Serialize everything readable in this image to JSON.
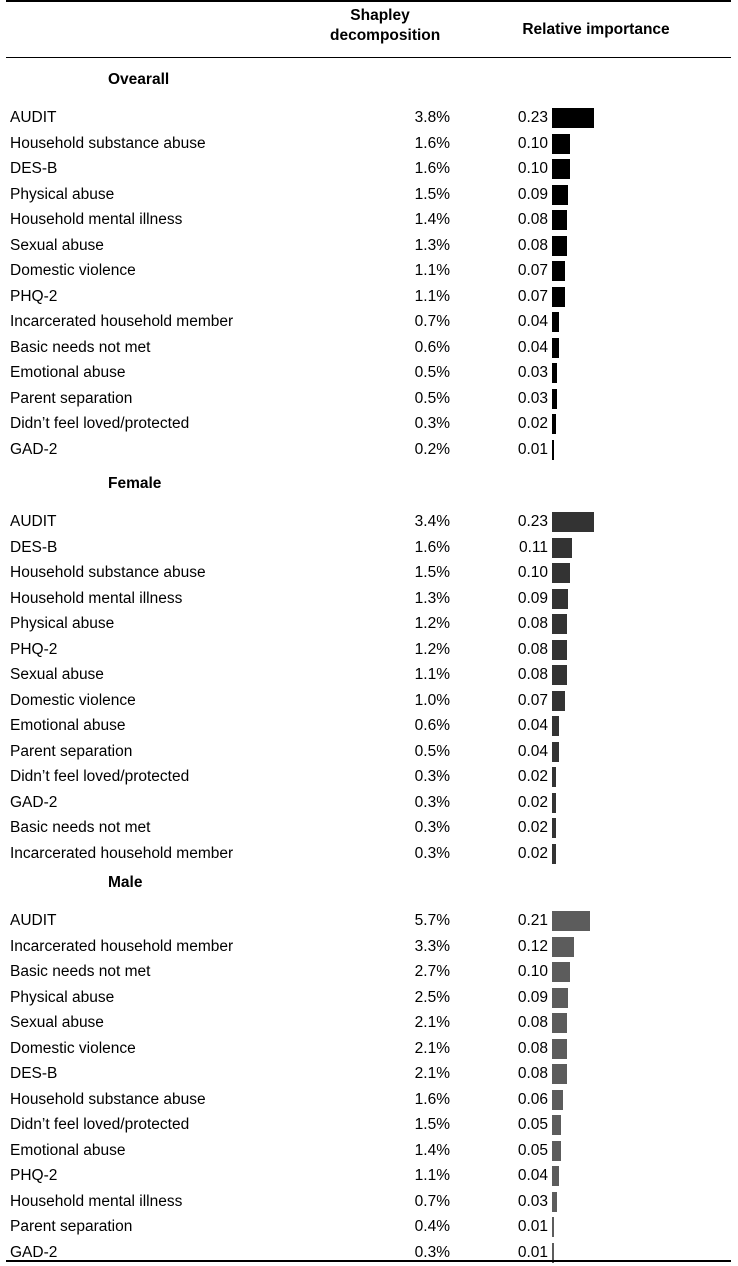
{
  "header": {
    "shapley_label": "Shapley decomposition",
    "relative_label": "Relative importance"
  },
  "colors": {
    "Overall": "#000000",
    "Female": "#333333",
    "Male": "#5c5c5c"
  },
  "chart_data": {
    "type": "bar",
    "orientation": "horizontal",
    "xlim": [
      0,
      0.23
    ],
    "groups": [
      {
        "name": "Ovearall",
        "rows": [
          {
            "label": "AUDIT",
            "shapley": "3.8%",
            "relative": "0.23",
            "value": 0.23
          },
          {
            "label": "Household substance abuse",
            "shapley": "1.6%",
            "relative": "0.10",
            "value": 0.1
          },
          {
            "label": "DES-B",
            "shapley": "1.6%",
            "relative": "0.10",
            "value": 0.1
          },
          {
            "label": "Physical abuse",
            "shapley": "1.5%",
            "relative": "0.09",
            "value": 0.09
          },
          {
            "label": "Household mental illness",
            "shapley": "1.4%",
            "relative": "0.08",
            "value": 0.08
          },
          {
            "label": "Sexual abuse",
            "shapley": "1.3%",
            "relative": "0.08",
            "value": 0.08
          },
          {
            "label": "Domestic violence",
            "shapley": "1.1%",
            "relative": "0.07",
            "value": 0.07
          },
          {
            "label": "PHQ-2",
            "shapley": "1.1%",
            "relative": "0.07",
            "value": 0.07
          },
          {
            "label": "Incarcerated household member",
            "shapley": "0.7%",
            "relative": "0.04",
            "value": 0.04
          },
          {
            "label": "Basic needs not met",
            "shapley": "0.6%",
            "relative": "0.04",
            "value": 0.04
          },
          {
            "label": "Emotional abuse",
            "shapley": "0.5%",
            "relative": "0.03",
            "value": 0.03
          },
          {
            "label": "Parent separation",
            "shapley": "0.5%",
            "relative": "0.03",
            "value": 0.03
          },
          {
            "label": "Didn’t feel loved/protected",
            "shapley": "0.3%",
            "relative": "0.02",
            "value": 0.02
          },
          {
            "label": "GAD-2",
            "shapley": "0.2%",
            "relative": "0.01",
            "value": 0.01
          }
        ]
      },
      {
        "name": "Female",
        "rows": [
          {
            "label": "AUDIT",
            "shapley": "3.4%",
            "relative": "0.23",
            "value": 0.23
          },
          {
            "label": "DES-B",
            "shapley": "1.6%",
            "relative": "0.11",
            "value": 0.11
          },
          {
            "label": "Household substance abuse",
            "shapley": "1.5%",
            "relative": "0.10",
            "value": 0.1
          },
          {
            "label": "Household mental illness",
            "shapley": "1.3%",
            "relative": "0.09",
            "value": 0.09
          },
          {
            "label": "Physical abuse",
            "shapley": "1.2%",
            "relative": "0.08",
            "value": 0.08
          },
          {
            "label": "PHQ-2",
            "shapley": "1.2%",
            "relative": "0.08",
            "value": 0.08
          },
          {
            "label": "Sexual abuse",
            "shapley": "1.1%",
            "relative": "0.08",
            "value": 0.08
          },
          {
            "label": "Domestic violence",
            "shapley": "1.0%",
            "relative": "0.07",
            "value": 0.07
          },
          {
            "label": "Emotional abuse",
            "shapley": "0.6%",
            "relative": "0.04",
            "value": 0.04
          },
          {
            "label": "Parent separation",
            "shapley": "0.5%",
            "relative": "0.04",
            "value": 0.04
          },
          {
            "label": "Didn’t feel loved/protected",
            "shapley": "0.3%",
            "relative": "0.02",
            "value": 0.02
          },
          {
            "label": "GAD-2",
            "shapley": "0.3%",
            "relative": "0.02",
            "value": 0.02
          },
          {
            "label": "Basic needs not met",
            "shapley": "0.3%",
            "relative": "0.02",
            "value": 0.02
          },
          {
            "label": "Incarcerated household member",
            "shapley": "0.3%",
            "relative": "0.02",
            "value": 0.02
          }
        ]
      },
      {
        "name": "Male",
        "rows": [
          {
            "label": "AUDIT",
            "shapley": "5.7%",
            "relative": "0.21",
            "value": 0.21
          },
          {
            "label": "Incarcerated household member",
            "shapley": "3.3%",
            "relative": "0.12",
            "value": 0.12
          },
          {
            "label": "Basic needs not met",
            "shapley": "2.7%",
            "relative": "0.10",
            "value": 0.1
          },
          {
            "label": "Physical abuse",
            "shapley": "2.5%",
            "relative": "0.09",
            "value": 0.09
          },
          {
            "label": "Sexual abuse",
            "shapley": "2.1%",
            "relative": "0.08",
            "value": 0.08
          },
          {
            "label": "Domestic violence",
            "shapley": "2.1%",
            "relative": "0.08",
            "value": 0.08
          },
          {
            "label": "DES-B",
            "shapley": "2.1%",
            "relative": "0.08",
            "value": 0.08
          },
          {
            "label": "Household substance abuse",
            "shapley": "1.6%",
            "relative": "0.06",
            "value": 0.06
          },
          {
            "label": "Didn’t feel loved/protected",
            "shapley": "1.5%",
            "relative": "0.05",
            "value": 0.05
          },
          {
            "label": "Emotional abuse",
            "shapley": "1.4%",
            "relative": "0.05",
            "value": 0.05
          },
          {
            "label": "PHQ-2",
            "shapley": "1.1%",
            "relative": "0.04",
            "value": 0.04
          },
          {
            "label": "Household mental illness",
            "shapley": "0.7%",
            "relative": "0.03",
            "value": 0.03
          },
          {
            "label": "Parent separation",
            "shapley": "0.4%",
            "relative": "0.01",
            "value": 0.01
          },
          {
            "label": "GAD-2",
            "shapley": "0.3%",
            "relative": "0.01",
            "value": 0.01
          }
        ]
      }
    ]
  }
}
